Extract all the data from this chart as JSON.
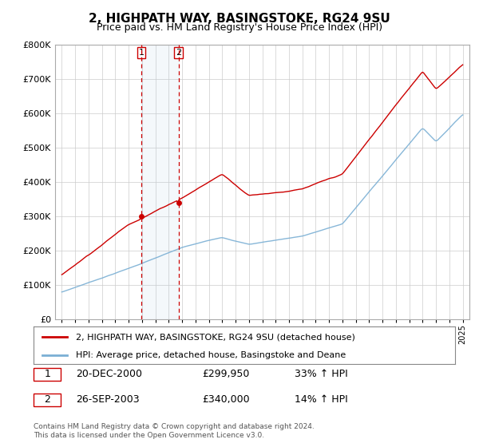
{
  "title": "2, HIGHPATH WAY, BASINGSTOKE, RG24 9SU",
  "subtitle": "Price paid vs. HM Land Registry's House Price Index (HPI)",
  "red_label": "2, HIGHPATH WAY, BASINGSTOKE, RG24 9SU (detached house)",
  "blue_label": "HPI: Average price, detached house, Basingstoke and Deane",
  "sale1_date": "20-DEC-2000",
  "sale1_price": "£299,950",
  "sale1_hpi": "33% ↑ HPI",
  "sale2_date": "26-SEP-2003",
  "sale2_price": "£340,000",
  "sale2_hpi": "14% ↑ HPI",
  "footnote": "Contains HM Land Registry data © Crown copyright and database right 2024.\nThis data is licensed under the Open Government Licence v3.0.",
  "ylim": [
    0,
    800000
  ],
  "yticks": [
    0,
    100000,
    200000,
    300000,
    400000,
    500000,
    600000,
    700000,
    800000
  ],
  "background_color": "#ffffff",
  "plot_bg_color": "#ffffff",
  "grid_color": "#cccccc",
  "red_color": "#cc0000",
  "blue_color": "#7aafd4",
  "sale1_x": 2000.97,
  "sale2_x": 2003.73,
  "sale1_y": 299950,
  "sale2_y": 340000,
  "xmin": 1994.5,
  "xmax": 2025.5
}
